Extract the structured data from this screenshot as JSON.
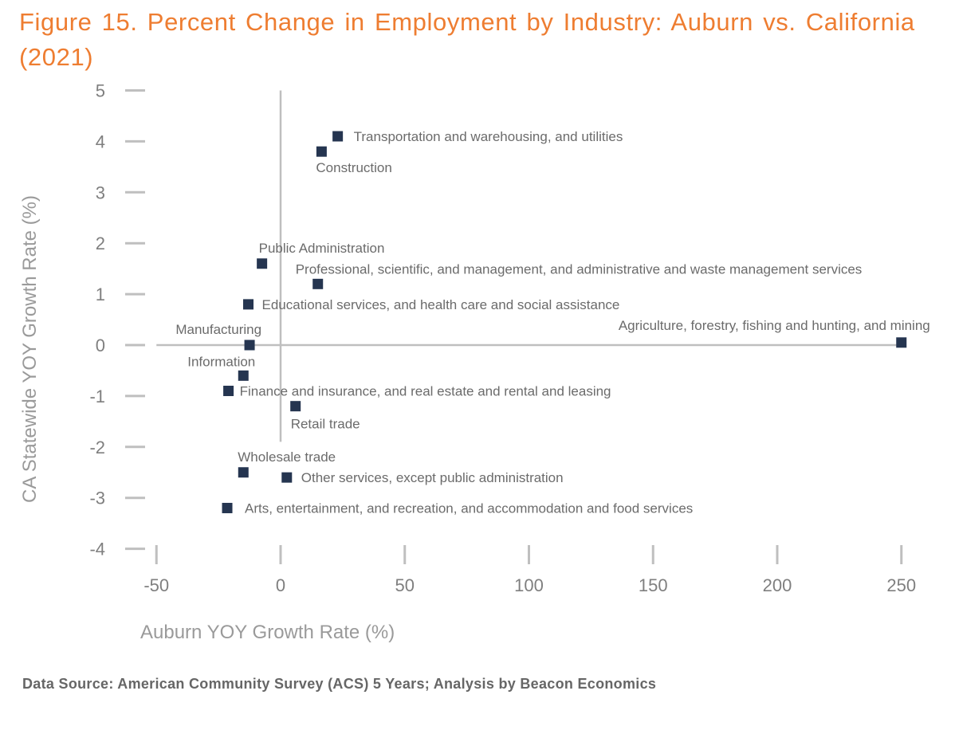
{
  "chart_data": {
    "type": "scatter",
    "title": "Figure 15. Percent Change in Employment by Industry: Auburn vs. California (2021)",
    "xlabel": "Auburn YOY Growth Rate (%)",
    "ylabel": "CA Statewide YOY Growth Rate (%)",
    "xlim": [
      -50,
      250
    ],
    "ylim": [
      -4,
      5
    ],
    "x_ticks": [
      "-50",
      "0",
      "50",
      "100",
      "150",
      "200",
      "250"
    ],
    "y_ticks": [
      "5",
      "4",
      "3",
      "2",
      "1",
      "0",
      "-1",
      "-2",
      "-3",
      "-4"
    ],
    "grid": false,
    "marker_color": "#253550",
    "points": [
      {
        "label": "Transportation and warehousing, and utilities",
        "x": 23,
        "y": 4.1
      },
      {
        "label": "Construction",
        "x": 16.5,
        "y": 3.8
      },
      {
        "label": "Public Administration",
        "x": -7.5,
        "y": 1.6
      },
      {
        "label": "Professional, scientific, and management, and administrative and waste management services",
        "x": 15,
        "y": 1.2
      },
      {
        "label": "Educational services, and health care and social assistance",
        "x": -13,
        "y": 0.8
      },
      {
        "label": "Manufacturing",
        "x": -12.5,
        "y": 0.0
      },
      {
        "label": "Agriculture, forestry, fishing and hunting, and mining",
        "x": 250,
        "y": 0.05
      },
      {
        "label": "Information",
        "x": -15,
        "y": -0.6
      },
      {
        "label": "Finance and insurance, and real estate and rental and leasing",
        "x": -21,
        "y": -0.9
      },
      {
        "label": "Retail trade",
        "x": 6,
        "y": -1.2
      },
      {
        "label": "Wholesale trade",
        "x": -15,
        "y": -2.5
      },
      {
        "label": "Other services, except public administration",
        "x": 2.5,
        "y": -2.6
      },
      {
        "label": "Arts, entertainment, and recreation, and accommodation and food services",
        "x": -21.5,
        "y": -3.2
      }
    ]
  },
  "source": "Data Source: American Community Survey (ACS) 5 Years; Analysis by Beacon Economics"
}
